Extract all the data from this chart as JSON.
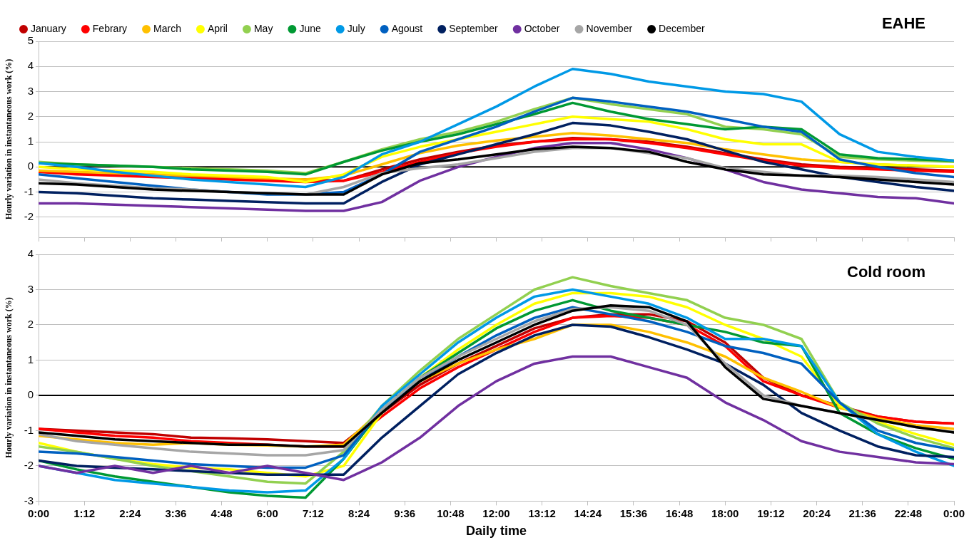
{
  "chart_data": [
    {
      "type": "line",
      "title": "EAHE",
      "ylabel": "Hourly variation in instantaneous work (%)",
      "x": [
        0,
        1,
        2,
        3,
        4,
        5,
        6,
        7,
        8,
        9,
        10,
        11,
        12,
        13,
        14,
        15,
        16,
        17,
        18,
        19,
        20,
        21,
        22,
        23,
        24
      ],
      "xlim": [
        0,
        24
      ],
      "xticks": [
        {
          "value": 0,
          "label": null
        },
        {
          "value": 1.2,
          "label": null
        },
        {
          "value": 2.4,
          "label": null
        },
        {
          "value": 3.6,
          "label": null
        },
        {
          "value": 4.8,
          "label": null
        },
        {
          "value": 6,
          "label": null
        },
        {
          "value": 7.2,
          "label": null
        },
        {
          "value": 8.4,
          "label": null
        },
        {
          "value": 9.6,
          "label": null
        },
        {
          "value": 10.8,
          "label": null
        },
        {
          "value": 12,
          "label": null
        },
        {
          "value": 13.2,
          "label": null
        },
        {
          "value": 14.4,
          "label": null
        },
        {
          "value": 15.6,
          "label": null
        },
        {
          "value": 16.8,
          "label": null
        },
        {
          "value": 18,
          "label": null
        },
        {
          "value": 19.2,
          "label": null
        },
        {
          "value": 20.4,
          "label": null
        },
        {
          "value": 21.6,
          "label": null
        },
        {
          "value": 22.8,
          "label": null
        },
        {
          "value": 24,
          "label": null
        }
      ],
      "ylim": [
        -2.8,
        5
      ],
      "yticks": [
        -2,
        -1,
        0,
        1,
        2,
        3,
        4,
        5
      ],
      "tick_labels": "y",
      "grid": "y",
      "legend": "top",
      "marker": "none",
      "line_style": "solid",
      "ref_lines": [
        {
          "axis": "y",
          "value": 0,
          "color": "#000000"
        }
      ],
      "series": [
        {
          "name": "January",
          "color": "#c00000",
          "values": [
            -0.2,
            -0.25,
            -0.3,
            -0.35,
            -0.4,
            -0.45,
            -0.5,
            -0.5,
            -0.55,
            -0.1,
            0.3,
            0.6,
            0.85,
            1.0,
            1.15,
            1.1,
            1.0,
            0.8,
            0.55,
            0.3,
            0.1,
            0.0,
            -0.05,
            -0.1,
            -0.15
          ]
        },
        {
          "name": "Febrary",
          "color": "#ff0000",
          "values": [
            -0.2,
            -0.3,
            -0.35,
            -0.4,
            -0.45,
            -0.5,
            -0.55,
            -0.6,
            -0.55,
            -0.2,
            0.2,
            0.55,
            0.8,
            1.0,
            1.1,
            1.1,
            0.95,
            0.75,
            0.5,
            0.25,
            0.05,
            -0.05,
            -0.1,
            -0.15,
            -0.2
          ]
        },
        {
          "name": "March",
          "color": "#ffc000",
          "values": [
            -0.15,
            -0.2,
            -0.25,
            -0.3,
            -0.35,
            -0.4,
            -0.45,
            -0.5,
            -0.35,
            0.1,
            0.55,
            0.85,
            1.05,
            1.2,
            1.35,
            1.25,
            1.1,
            0.95,
            0.7,
            0.5,
            0.3,
            0.2,
            0.1,
            0.05,
            0.0
          ]
        },
        {
          "name": "April",
          "color": "#ffff00",
          "values": [
            0.0,
            -0.1,
            -0.15,
            -0.2,
            -0.3,
            -0.35,
            -0.4,
            -0.6,
            -0.3,
            0.4,
            0.8,
            1.1,
            1.4,
            1.7,
            2.0,
            1.9,
            1.8,
            1.5,
            1.1,
            0.9,
            0.9,
            0.2,
            0.1,
            0.05,
            0.0
          ]
        },
        {
          "name": "May",
          "color": "#92d050",
          "values": [
            0.2,
            0.1,
            0.05,
            0.0,
            -0.05,
            -0.1,
            -0.15,
            -0.25,
            0.2,
            0.7,
            1.1,
            1.4,
            1.8,
            2.3,
            2.75,
            2.5,
            2.3,
            2.1,
            1.6,
            1.5,
            1.3,
            0.4,
            0.3,
            0.25,
            0.2
          ]
        },
        {
          "name": "June",
          "color": "#009933",
          "values": [
            0.15,
            0.1,
            0.05,
            0.0,
            -0.1,
            -0.15,
            -0.2,
            -0.3,
            0.2,
            0.65,
            1.0,
            1.3,
            1.7,
            2.1,
            2.55,
            2.2,
            1.9,
            1.7,
            1.5,
            1.6,
            1.5,
            0.5,
            0.35,
            0.3,
            0.25
          ]
        },
        {
          "name": "July",
          "color": "#0099e6",
          "values": [
            0.15,
            0.0,
            -0.2,
            -0.35,
            -0.5,
            -0.6,
            -0.7,
            -0.8,
            -0.4,
            0.5,
            1.0,
            1.7,
            2.4,
            3.2,
            3.9,
            3.7,
            3.4,
            3.2,
            3.0,
            2.9,
            2.6,
            1.3,
            0.6,
            0.4,
            0.25
          ]
        },
        {
          "name": "Agoust",
          "color": "#0060c0",
          "values": [
            -0.3,
            -0.45,
            -0.6,
            -0.75,
            -0.9,
            -1.0,
            -1.1,
            -1.1,
            -1.0,
            -0.3,
            0.6,
            1.1,
            1.6,
            2.2,
            2.75,
            2.6,
            2.4,
            2.2,
            1.9,
            1.6,
            1.4,
            0.3,
            0.0,
            -0.25,
            -0.4
          ]
        },
        {
          "name": "September",
          "color": "#002060",
          "values": [
            -1.0,
            -1.05,
            -1.15,
            -1.25,
            -1.3,
            -1.35,
            -1.4,
            -1.45,
            -1.45,
            -0.6,
            0.1,
            0.5,
            0.9,
            1.3,
            1.75,
            1.65,
            1.4,
            1.1,
            0.65,
            0.2,
            -0.1,
            -0.4,
            -0.6,
            -0.8,
            -0.95
          ]
        },
        {
          "name": "October",
          "color": "#7030a0",
          "values": [
            -1.45,
            -1.45,
            -1.5,
            -1.55,
            -1.6,
            -1.65,
            -1.7,
            -1.75,
            -1.75,
            -1.4,
            -0.55,
            0.0,
            0.4,
            0.75,
            0.95,
            0.95,
            0.7,
            0.35,
            -0.1,
            -0.6,
            -0.9,
            -1.05,
            -1.2,
            -1.25,
            -1.45
          ]
        },
        {
          "name": "November",
          "color": "#a6a6a6",
          "values": [
            -0.5,
            -0.65,
            -0.75,
            -0.85,
            -0.9,
            -1.0,
            -1.05,
            -1.1,
            -0.8,
            -0.25,
            -0.05,
            0.1,
            0.35,
            0.6,
            0.75,
            0.75,
            0.55,
            0.35,
            -0.05,
            -0.2,
            -0.35,
            -0.35,
            -0.4,
            -0.5,
            -0.6
          ]
        },
        {
          "name": "December",
          "color": "#000000",
          "values": [
            -0.65,
            -0.7,
            -0.8,
            -0.9,
            -0.95,
            -1.0,
            -1.05,
            -1.1,
            -1.1,
            -0.3,
            0.15,
            0.3,
            0.5,
            0.7,
            0.8,
            0.75,
            0.6,
            0.2,
            -0.1,
            -0.3,
            -0.35,
            -0.4,
            -0.5,
            -0.6,
            -0.7
          ]
        }
      ]
    },
    {
      "type": "line",
      "title": "Cold room",
      "xlabel": "Daily time",
      "ylabel": "Hourly variation in instantaneous work (%)",
      "x": [
        0,
        1,
        2,
        3,
        4,
        5,
        6,
        7,
        8,
        9,
        10,
        11,
        12,
        13,
        14,
        15,
        16,
        17,
        18,
        19,
        20,
        21,
        22,
        23,
        24
      ],
      "xlim": [
        0,
        24
      ],
      "xticks": [
        {
          "value": 0,
          "label": "0:00"
        },
        {
          "value": 1.2,
          "label": "1:12"
        },
        {
          "value": 2.4,
          "label": "2:24"
        },
        {
          "value": 3.6,
          "label": "3:36"
        },
        {
          "value": 4.8,
          "label": "4:48"
        },
        {
          "value": 6,
          "label": "6:00"
        },
        {
          "value": 7.2,
          "label": "7:12"
        },
        {
          "value": 8.4,
          "label": "8:24"
        },
        {
          "value": 9.6,
          "label": "9:36"
        },
        {
          "value": 10.8,
          "label": "10:48"
        },
        {
          "value": 12,
          "label": "12:00"
        },
        {
          "value": 13.2,
          "label": "13:12"
        },
        {
          "value": 14.4,
          "label": "14:24"
        },
        {
          "value": 15.6,
          "label": "15:36"
        },
        {
          "value": 16.8,
          "label": "16:48"
        },
        {
          "value": 18,
          "label": "18:00"
        },
        {
          "value": 19.2,
          "label": "19:12"
        },
        {
          "value": 20.4,
          "label": "20:24"
        },
        {
          "value": 21.6,
          "label": "21:36"
        },
        {
          "value": 22.8,
          "label": "22:48"
        },
        {
          "value": 24,
          "label": "0:00"
        }
      ],
      "ylim": [
        -3,
        4
      ],
      "yticks": [
        -3,
        -2,
        -1,
        0,
        1,
        2,
        3,
        4
      ],
      "grid": "y",
      "marker": "none",
      "line_style": "solid",
      "ref_lines": [
        {
          "axis": "y",
          "value": 0,
          "color": "#000000"
        }
      ],
      "series": [
        {
          "color": "#c00000",
          "values": [
            -0.95,
            -1.0,
            -1.05,
            -1.1,
            -1.2,
            -1.22,
            -1.25,
            -1.3,
            -1.35,
            -0.5,
            0.3,
            0.9,
            1.4,
            1.9,
            2.2,
            2.3,
            2.3,
            2.1,
            1.5,
            0.5,
            0.0,
            -0.3,
            -0.6,
            -0.75,
            -0.8
          ]
        },
        {
          "color": "#ff0000",
          "values": [
            -0.95,
            -1.05,
            -1.15,
            -1.2,
            -1.3,
            -1.35,
            -1.4,
            -1.45,
            -1.45,
            -0.6,
            0.2,
            0.8,
            1.3,
            1.8,
            2.2,
            2.25,
            2.2,
            2.0,
            1.4,
            0.4,
            0.0,
            -0.35,
            -0.6,
            -0.75,
            -0.8
          ]
        },
        {
          "color": "#ffc000",
          "values": [
            -1.15,
            -1.25,
            -1.35,
            -1.4,
            -1.35,
            -1.4,
            -1.42,
            -1.45,
            -1.4,
            -0.4,
            0.4,
            0.9,
            1.3,
            1.6,
            2.0,
            2.0,
            1.8,
            1.5,
            1.1,
            0.5,
            0.1,
            -0.35,
            -0.65,
            -0.85,
            -0.95
          ]
        },
        {
          "color": "#ffff00",
          "values": [
            -1.35,
            -1.6,
            -1.8,
            -1.95,
            -2.05,
            -2.1,
            -2.2,
            -2.3,
            -2.0,
            -0.5,
            0.5,
            1.3,
            2.0,
            2.6,
            2.9,
            2.9,
            2.8,
            2.5,
            2.0,
            1.6,
            1.1,
            -0.3,
            -0.75,
            -1.1,
            -1.4
          ]
        },
        {
          "color": "#92d050",
          "values": [
            -1.45,
            -1.6,
            -1.8,
            -2.0,
            -2.15,
            -2.3,
            -2.45,
            -2.5,
            -1.6,
            -0.3,
            0.7,
            1.6,
            2.3,
            3.0,
            3.35,
            3.1,
            2.9,
            2.7,
            2.2,
            2.0,
            1.6,
            -0.2,
            -0.8,
            -1.2,
            -1.5
          ]
        },
        {
          "color": "#009933",
          "values": [
            -1.85,
            -2.1,
            -2.3,
            -2.45,
            -2.6,
            -2.75,
            -2.85,
            -2.9,
            -1.8,
            -0.4,
            0.5,
            1.2,
            1.9,
            2.4,
            2.7,
            2.4,
            2.2,
            2.0,
            1.8,
            1.5,
            1.4,
            -0.5,
            -1.1,
            -1.5,
            -1.8
          ]
        },
        {
          "color": "#0099e6",
          "values": [
            -2.0,
            -2.2,
            -2.4,
            -2.5,
            -2.6,
            -2.7,
            -2.75,
            -2.7,
            -1.8,
            -0.3,
            0.6,
            1.5,
            2.2,
            2.8,
            3.0,
            2.8,
            2.6,
            2.2,
            1.6,
            1.6,
            1.4,
            -0.2,
            -1.1,
            -1.6,
            -2.0
          ]
        },
        {
          "color": "#0060c0",
          "values": [
            -1.6,
            -1.65,
            -1.75,
            -1.85,
            -1.95,
            -2.0,
            -2.05,
            -2.05,
            -1.7,
            -0.4,
            0.4,
            1.1,
            1.7,
            2.2,
            2.5,
            2.3,
            2.1,
            1.8,
            1.4,
            1.2,
            0.9,
            -0.2,
            -1.0,
            -1.35,
            -1.55
          ]
        },
        {
          "color": "#002060",
          "values": [
            -1.85,
            -2.0,
            -2.05,
            -2.1,
            -2.15,
            -2.2,
            -2.25,
            -2.25,
            -2.25,
            -1.2,
            -0.3,
            0.6,
            1.2,
            1.7,
            2.0,
            1.95,
            1.65,
            1.3,
            0.9,
            0.3,
            -0.5,
            -1.0,
            -1.45,
            -1.7,
            -1.75
          ]
        },
        {
          "color": "#7030a0",
          "values": [
            -2.0,
            -2.2,
            -2.0,
            -2.2,
            -2.0,
            -2.2,
            -2.0,
            -2.2,
            -2.4,
            -1.9,
            -1.2,
            -0.3,
            0.4,
            0.9,
            1.1,
            1.1,
            0.8,
            0.5,
            -0.2,
            -0.7,
            -1.3,
            -1.6,
            -1.75,
            -1.9,
            -1.95
          ]
        },
        {
          "color": "#a6a6a6",
          "values": [
            -1.1,
            -1.3,
            -1.4,
            -1.5,
            -1.6,
            -1.65,
            -1.7,
            -1.7,
            -1.55,
            -0.4,
            0.5,
            1.1,
            1.6,
            2.1,
            2.45,
            2.5,
            2.4,
            2.0,
            0.9,
            0.0,
            -0.3,
            -0.5,
            -0.7,
            -0.9,
            -1.05
          ]
        },
        {
          "color": "#000000",
          "values": [
            -1.05,
            -1.15,
            -1.25,
            -1.3,
            -1.35,
            -1.4,
            -1.4,
            -1.45,
            -1.45,
            -0.5,
            0.4,
            1.0,
            1.5,
            2.0,
            2.4,
            2.55,
            2.5,
            2.1,
            0.8,
            -0.1,
            -0.3,
            -0.5,
            -0.7,
            -0.9,
            -1.05
          ]
        }
      ]
    }
  ]
}
